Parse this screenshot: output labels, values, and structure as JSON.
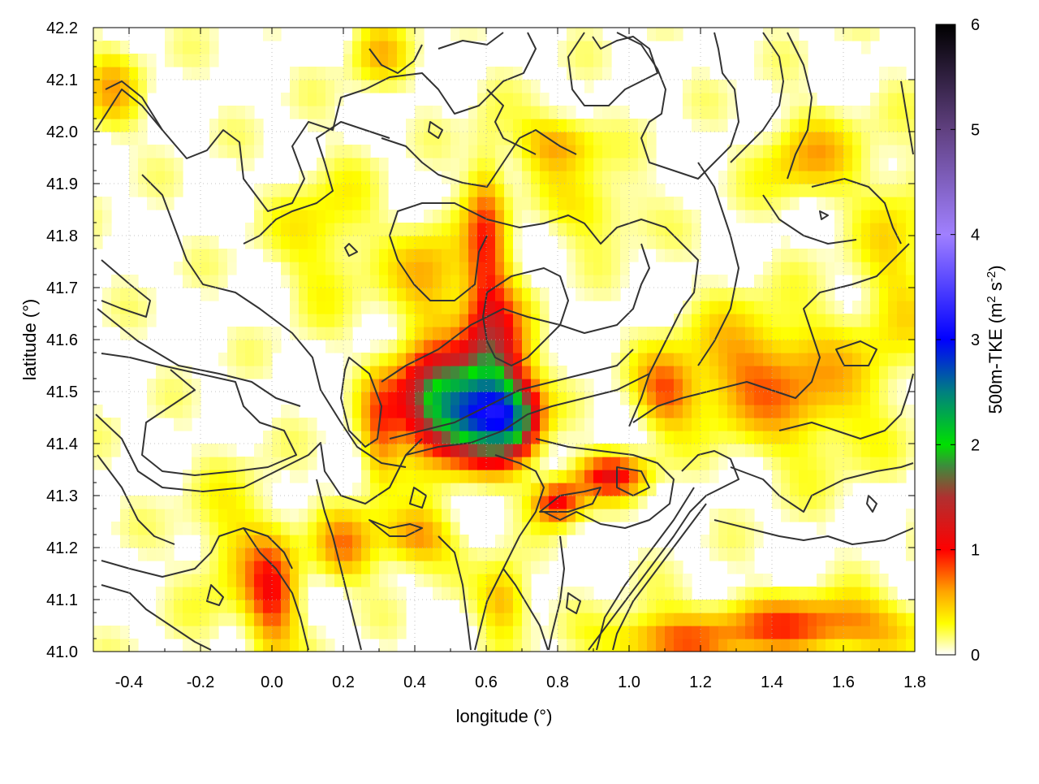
{
  "chart_data": {
    "type": "heatmap",
    "title": "",
    "xlabel": "longitude (°)",
    "ylabel": "latitude (°)",
    "xlim": [
      -0.5,
      1.8
    ],
    "ylim": [
      41.0,
      42.2
    ],
    "xticks": [
      -0.4,
      -0.2,
      0.0,
      0.2,
      0.4,
      0.6,
      0.8,
      1.0,
      1.2,
      1.4,
      1.6,
      1.8
    ],
    "xtick_labels": [
      "-0.4",
      "-0.2",
      "0.0",
      "0.2",
      "0.4",
      "0.6",
      "0.8",
      "1.0",
      "1.2",
      "1.4",
      "1.6",
      "1.8"
    ],
    "yticks": [
      41.0,
      41.1,
      41.2,
      41.3,
      41.4,
      41.5,
      41.6,
      41.7,
      41.8,
      41.9,
      42.0,
      42.1,
      42.2
    ],
    "ytick_labels": [
      "41.0",
      "41.1",
      "41.2",
      "41.3",
      "41.4",
      "41.5",
      "41.6",
      "41.7",
      "41.8",
      "41.9",
      "42.0",
      "42.1",
      "42.2"
    ],
    "grid": true,
    "colorbar": {
      "label_prefix": "500m-TKE (m",
      "label_sup1": "2",
      "label_mid": " s",
      "label_sup2": "-2",
      "label_suffix": ")",
      "range": [
        0,
        6
      ],
      "ticks": [
        0,
        1,
        2,
        3,
        4,
        5,
        6
      ],
      "tick_labels": [
        "0",
        "1",
        "2",
        "3",
        "4",
        "5",
        "6"
      ],
      "colormap": [
        {
          "value": 0.0,
          "color": "#ffffff"
        },
        {
          "value": 0.3,
          "color": "#ffff00"
        },
        {
          "value": 0.6,
          "color": "#ffa500"
        },
        {
          "value": 1.0,
          "color": "#ff0000"
        },
        {
          "value": 1.5,
          "color": "#b03030"
        },
        {
          "value": 1.8,
          "color": "#3c8c3c"
        },
        {
          "value": 2.0,
          "color": "#00e000"
        },
        {
          "value": 2.5,
          "color": "#008080"
        },
        {
          "value": 3.0,
          "color": "#0000ff"
        },
        {
          "value": 4.0,
          "color": "#a080ff"
        },
        {
          "value": 5.0,
          "color": "#604080"
        },
        {
          "value": 6.0,
          "color": "#000000"
        }
      ]
    },
    "hotspots": [
      {
        "lon": 0.55,
        "lat": 41.45,
        "tke": 1.9,
        "sx": 0.1,
        "sy": 0.06
      },
      {
        "lon": 0.62,
        "lat": 41.55,
        "tke": 1.4,
        "sx": 0.06,
        "sy": 0.1
      },
      {
        "lon": 0.45,
        "lat": 41.5,
        "tke": 1.2,
        "sx": 0.08,
        "sy": 0.06
      },
      {
        "lon": 0.68,
        "lat": 41.45,
        "tke": 1.3,
        "sx": 0.05,
        "sy": 0.05
      },
      {
        "lon": 0.95,
        "lat": 41.34,
        "tke": 1.0,
        "sx": 0.07,
        "sy": 0.03
      },
      {
        "lon": 0.8,
        "lat": 41.29,
        "tke": 1.0,
        "sx": 0.05,
        "sy": 0.03
      },
      {
        "lon": 0.6,
        "lat": 41.8,
        "tke": 0.7,
        "sx": 0.04,
        "sy": 0.12
      },
      {
        "lon": 0.45,
        "lat": 41.72,
        "tke": 0.5,
        "sx": 0.08,
        "sy": 0.08
      },
      {
        "lon": 0.3,
        "lat": 41.42,
        "tke": 0.6,
        "sx": 0.04,
        "sy": 0.08
      },
      {
        "lon": 0.0,
        "lat": 41.1,
        "tke": 0.8,
        "sx": 0.05,
        "sy": 0.08
      },
      {
        "lon": 0.2,
        "lat": 41.2,
        "tke": 0.6,
        "sx": 0.06,
        "sy": 0.05
      },
      {
        "lon": 0.4,
        "lat": 41.22,
        "tke": 0.7,
        "sx": 0.07,
        "sy": 0.04
      },
      {
        "lon": 0.65,
        "lat": 41.1,
        "tke": 0.6,
        "sx": 0.05,
        "sy": 0.05
      },
      {
        "lon": 1.1,
        "lat": 41.5,
        "tke": 0.7,
        "sx": 0.06,
        "sy": 0.05
      },
      {
        "lon": 1.3,
        "lat": 41.55,
        "tke": 0.45,
        "sx": 0.12,
        "sy": 0.08
      },
      {
        "lon": 1.5,
        "lat": 41.5,
        "tke": 0.5,
        "sx": 0.15,
        "sy": 0.1
      },
      {
        "lon": 1.5,
        "lat": 41.05,
        "tke": 0.8,
        "sx": 0.25,
        "sy": 0.04
      },
      {
        "lon": 1.1,
        "lat": 41.02,
        "tke": 0.6,
        "sx": 0.12,
        "sy": 0.03
      },
      {
        "lon": 0.8,
        "lat": 41.98,
        "tke": 0.6,
        "sx": 0.08,
        "sy": 0.04
      },
      {
        "lon": 1.5,
        "lat": 41.95,
        "tke": 0.5,
        "sx": 0.1,
        "sy": 0.06
      },
      {
        "lon": -0.45,
        "lat": 42.08,
        "tke": 0.45,
        "sx": 0.06,
        "sy": 0.06
      },
      {
        "lon": 0.3,
        "lat": 42.15,
        "tke": 0.4,
        "sx": 0.06,
        "sy": 0.05
      },
      {
        "lon": 0.15,
        "lat": 41.8,
        "tke": 0.35,
        "sx": 0.1,
        "sy": 0.1
      },
      {
        "lon": -0.1,
        "lat": 41.2,
        "tke": 0.35,
        "sx": 0.1,
        "sy": 0.1
      },
      {
        "lon": 0.9,
        "lat": 41.85,
        "tke": 0.35,
        "sx": 0.1,
        "sy": 0.05
      },
      {
        "lon": 1.75,
        "lat": 41.75,
        "tke": 0.35,
        "sx": 0.08,
        "sy": 0.15
      }
    ]
  }
}
